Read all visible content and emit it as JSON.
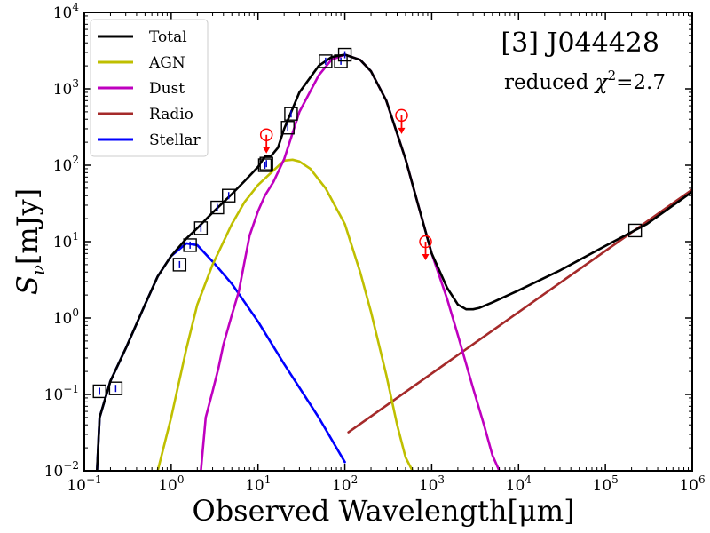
{
  "chart_data": {
    "type": "line",
    "title": "[3] J044428",
    "subtitle_prefix": "reduced ",
    "subtitle_symbol": "χ",
    "subtitle_sup": "2",
    "subtitle_suffix": "=2.7",
    "xlabel": "Observed Wavelength[μm]",
    "ylabel_symbol": "S",
    "ylabel_sub": "ν",
    "ylabel_unit": "[mJy]",
    "xscale": "log",
    "yscale": "log",
    "xlim": [
      0.1,
      1000000
    ],
    "ylim": [
      0.01,
      10000
    ],
    "x_tick_exponents": [
      -1,
      0,
      1,
      2,
      3,
      4,
      5,
      6
    ],
    "y_tick_exponents": [
      -2,
      -1,
      0,
      1,
      2,
      3,
      4
    ],
    "legend_position": "top-left",
    "series": [
      {
        "name": "Total",
        "color": "#000000",
        "x": [
          0.14,
          0.15,
          0.2,
          0.3,
          0.5,
          0.7,
          1.0,
          1.5,
          2.0,
          3.0,
          5.0,
          7.0,
          10,
          12,
          14,
          17,
          20,
          30,
          50,
          70,
          100,
          150,
          200,
          300,
          500,
          700,
          1000,
          1500,
          2000,
          2500,
          3000,
          3500,
          5000,
          10000,
          30000,
          100000,
          300000,
          1000000
        ],
        "y": [
          0.01,
          0.05,
          0.15,
          0.4,
          1.5,
          3.5,
          6.5,
          11,
          15,
          24,
          42,
          62,
          95,
          130,
          130,
          170,
          300,
          900,
          2000,
          2600,
          2800,
          2400,
          1700,
          700,
          120,
          30,
          7,
          2.5,
          1.5,
          1.3,
          1.3,
          1.35,
          1.6,
          2.3,
          4.2,
          8.8,
          17,
          45
        ]
      },
      {
        "name": "AGN",
        "color": "#bfbf00",
        "x": [
          0.7,
          1.0,
          1.5,
          2.0,
          3.0,
          5.0,
          7.0,
          10,
          15,
          20,
          25,
          30,
          40,
          60,
          100,
          150,
          200,
          300,
          400,
          500,
          600
        ],
        "y": [
          0.01,
          0.05,
          0.4,
          1.5,
          5,
          17,
          33,
          55,
          85,
          115,
          118,
          112,
          90,
          50,
          17,
          4,
          1.2,
          0.18,
          0.04,
          0.015,
          0.01
        ]
      },
      {
        "name": "Dust",
        "color": "#bf00bf",
        "x": [
          2.2,
          2.5,
          3.0,
          3.5,
          4.0,
          5.0,
          6.0,
          7.0,
          8.0,
          10,
          12,
          15,
          20,
          30,
          50,
          70,
          100,
          150,
          200,
          300,
          500,
          700,
          1000,
          1500,
          2000,
          3000,
          4000,
          5000,
          6000
        ],
        "y": [
          0.01,
          0.05,
          0.11,
          0.22,
          0.45,
          1.1,
          2.2,
          5.5,
          12,
          25,
          40,
          60,
          120,
          500,
          1500,
          2400,
          2800,
          2400,
          1700,
          700,
          120,
          30,
          7,
          1.8,
          0.6,
          0.12,
          0.04,
          0.016,
          0.01
        ]
      },
      {
        "name": "Radio",
        "color": "#a52a2a",
        "x": [
          110,
          1000000
        ],
        "y": [
          0.032,
          48
        ]
      },
      {
        "name": "Stellar",
        "color": "#0000ff",
        "x": [
          0.14,
          0.15,
          0.2,
          0.3,
          0.5,
          0.7,
          1.0,
          1.5,
          2.0,
          3.0,
          5.0,
          10,
          20,
          50,
          100
        ],
        "y": [
          0.01,
          0.05,
          0.15,
          0.4,
          1.5,
          3.5,
          6.5,
          9.5,
          9.0,
          5.5,
          2.8,
          0.9,
          0.25,
          0.05,
          0.013
        ]
      }
    ],
    "observations": {
      "x": [
        0.15,
        0.23,
        1.25,
        1.65,
        2.2,
        3.4,
        4.6,
        12,
        12.5,
        22,
        24,
        60,
        90,
        100
      ],
      "y": [
        0.11,
        0.12,
        5.0,
        9.0,
        15,
        28,
        40,
        100,
        105,
        310,
        470,
        2300,
        2300,
        2800
      ]
    },
    "observation_extra": {
      "x": [
        220000
      ],
      "y": [
        14
      ]
    },
    "upper_limits": {
      "color": "#ff0000",
      "x": [
        12.5,
        450,
        850
      ],
      "y": [
        250,
        450,
        10
      ]
    }
  }
}
